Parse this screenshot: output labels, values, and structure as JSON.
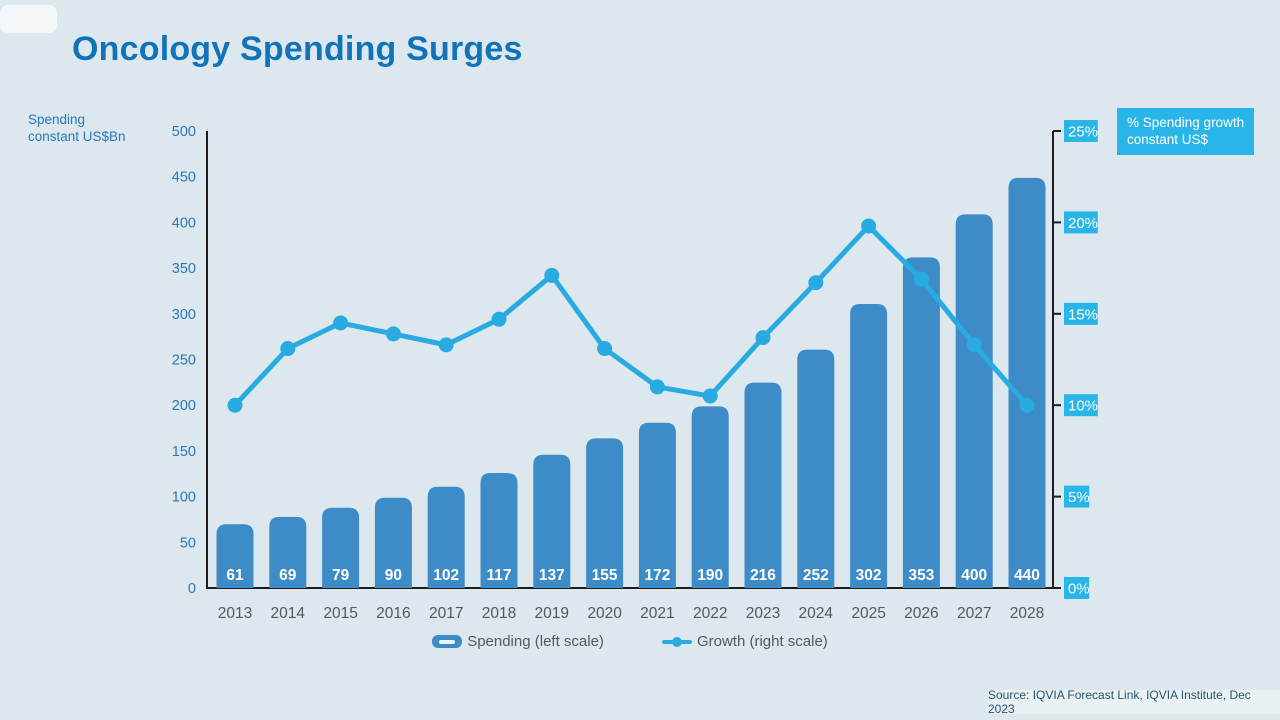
{
  "title": "Oncology Spending Surges",
  "left_axis_unit_label": "Spending\nconstant US$Bn",
  "right_axis_unit_label": "% Spending growth\nconstant US$",
  "legend": {
    "spending_label": "Spending (left scale)",
    "growth_label": "Growth (right scale)"
  },
  "source": "Source: IQVIA Forecast Link, IQVIA Institute, Dec 2023",
  "theme": {
    "background": "#dce8ee",
    "title_color": "#1173b8",
    "bar_color": "#3e8cc7",
    "line_color": "#29abe2",
    "cyan_badge_color": "#29b5e8",
    "axis_line_color": "#1c1c1c",
    "left_tick_label_color": "#2878ba",
    "category_label_color": "#54585c",
    "bar_value_label_color": "#ffffff",
    "source_text_color": "#29546e"
  },
  "chart_data": {
    "type": "bar+line combo",
    "title": "Oncology Spending Surges",
    "categories": [
      "2013",
      "2014",
      "2015",
      "2016",
      "2017",
      "2018",
      "2019",
      "2020",
      "2021",
      "2022",
      "2023",
      "2024",
      "2025",
      "2026",
      "2027",
      "2028"
    ],
    "series": [
      {
        "name": "Spending (left scale)",
        "type": "bar",
        "axis": "left",
        "values": [
          61,
          69,
          79,
          90,
          102,
          117,
          137,
          155,
          172,
          190,
          216,
          252,
          302,
          353,
          400,
          440
        ]
      },
      {
        "name": "Growth (right scale)",
        "type": "line",
        "axis": "right",
        "values": [
          10.0,
          13.1,
          14.5,
          13.9,
          13.3,
          14.7,
          17.1,
          13.1,
          11.0,
          10.5,
          13.7,
          16.7,
          19.8,
          16.9,
          13.3,
          10.0
        ]
      }
    ],
    "left_axis": {
      "title": "Spending constant US$Bn",
      "min": 0,
      "max": 500,
      "step": 50,
      "ticks": [
        0,
        50,
        100,
        150,
        200,
        250,
        300,
        350,
        400,
        450,
        500
      ]
    },
    "right_axis": {
      "title": "% Spending growth constant US$",
      "min": 0,
      "max": 25,
      "step": 5,
      "ticks": [
        0,
        5,
        10,
        15,
        20,
        25
      ],
      "tick_labels": [
        "0%",
        "5%",
        "10%",
        "15%",
        "20%",
        "25%"
      ]
    },
    "grid": false,
    "legend_position": "bottom-center",
    "bar_value_labels_shown": true
  }
}
